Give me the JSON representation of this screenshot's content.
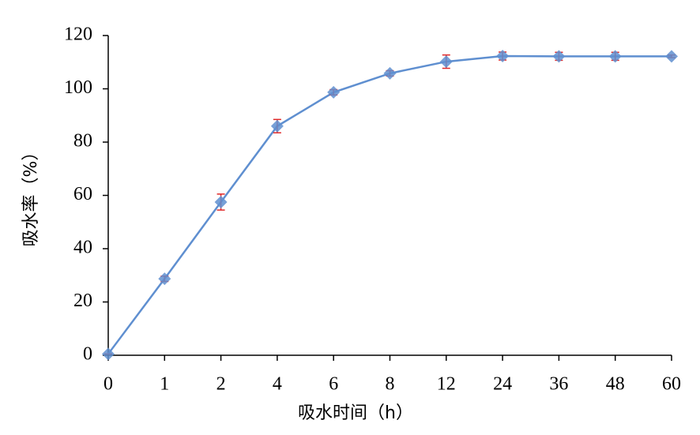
{
  "chart_data": {
    "type": "line",
    "x_label": "吸水时间（h）",
    "y_label": "吸水率（%）",
    "categories": [
      "0",
      "1",
      "2",
      "4",
      "6",
      "8",
      "12",
      "24",
      "36",
      "48",
      "60"
    ],
    "series": [
      {
        "name": "吸水率",
        "color": "#5f8fd0",
        "error_color": "#e02828",
        "values": [
          0.5,
          28.7,
          57.5,
          86,
          98.7,
          105.8,
          110.2,
          112.3,
          112.2,
          112.2,
          112.2
        ],
        "errors": [
          0,
          1,
          3,
          2.5,
          1,
          1,
          2.5,
          1.5,
          1.5,
          1.5,
          0.5
        ]
      }
    ],
    "ylim": [
      0,
      120
    ],
    "yticks": [
      0,
      20,
      40,
      60,
      80,
      100,
      120
    ],
    "grid": false
  }
}
